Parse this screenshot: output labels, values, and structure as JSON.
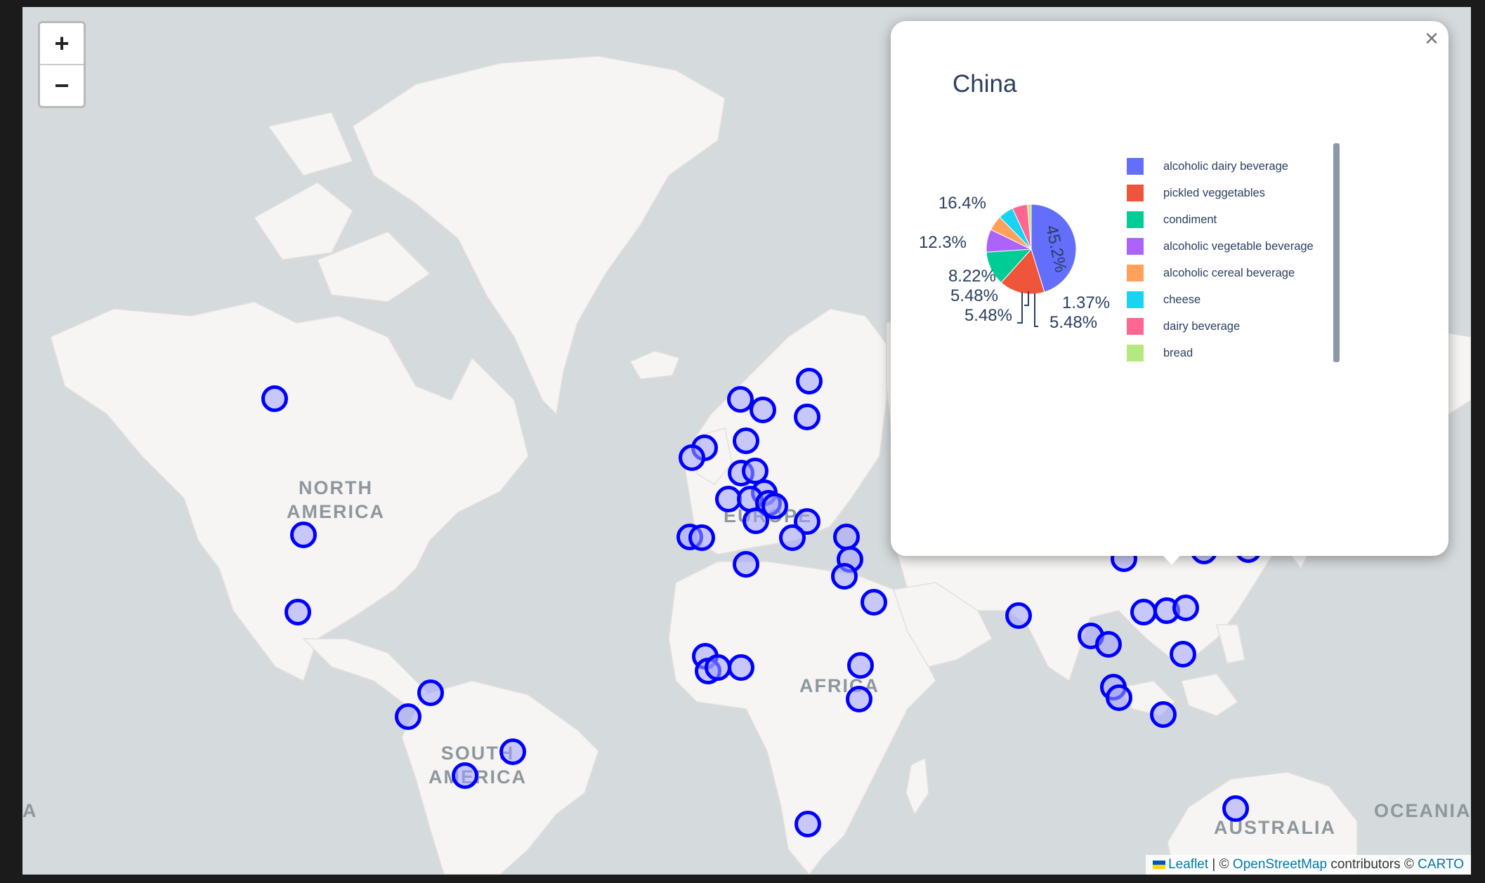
{
  "map": {
    "regions": [
      {
        "key": "north_america_1",
        "text": "NORTH"
      },
      {
        "key": "north_america_2",
        "text": "AMERICA"
      },
      {
        "key": "south_america_1",
        "text": "SOUTH"
      },
      {
        "key": "south_america_2",
        "text": "AMERICA"
      },
      {
        "key": "europe",
        "text": "EUROPE"
      },
      {
        "key": "africa",
        "text": "AFRICA"
      },
      {
        "key": "australia",
        "text": "AUSTRALIA"
      },
      {
        "key": "oceania",
        "text": "OCEANIA"
      },
      {
        "key": "asia_partial",
        "text": "A"
      }
    ],
    "zoom": {
      "in_label": "+",
      "out_label": "−"
    },
    "attribution": {
      "leaflet": "Leaflet",
      "sep": " | © ",
      "osm": "OpenStreetMap",
      "contributors": " contributors © ",
      "carto": "CARTO"
    },
    "colors": {
      "marker_stroke": "#0000ff",
      "marker_fill": "#a0a0ff",
      "water": "#d5dadc",
      "land": "#f6f5f3"
    }
  },
  "popup": {
    "title": "China",
    "close_label": "×",
    "chart_data": {
      "type": "pie",
      "title": "China",
      "labels": [
        "alcoholic dairy beverage",
        "pickled veggetables",
        "condiment",
        "alcoholic vegetable beverage",
        "alcoholic cereal beverage",
        "cheese",
        "dairy beverage",
        "bread"
      ],
      "values": [
        45.2,
        16.4,
        12.3,
        8.22,
        5.48,
        5.48,
        5.48,
        1.37
      ],
      "value_labels": [
        "45.2%",
        "16.4%",
        "12.3%",
        "8.22%",
        "5.48%",
        "5.48%",
        "5.48%",
        "1.37%"
      ],
      "colors": [
        "#636efa",
        "#ef553b",
        "#00cc96",
        "#ab63fa",
        "#ffa15a",
        "#19d3f3",
        "#ff6692",
        "#b6e880"
      ],
      "legend_position": "right"
    }
  }
}
